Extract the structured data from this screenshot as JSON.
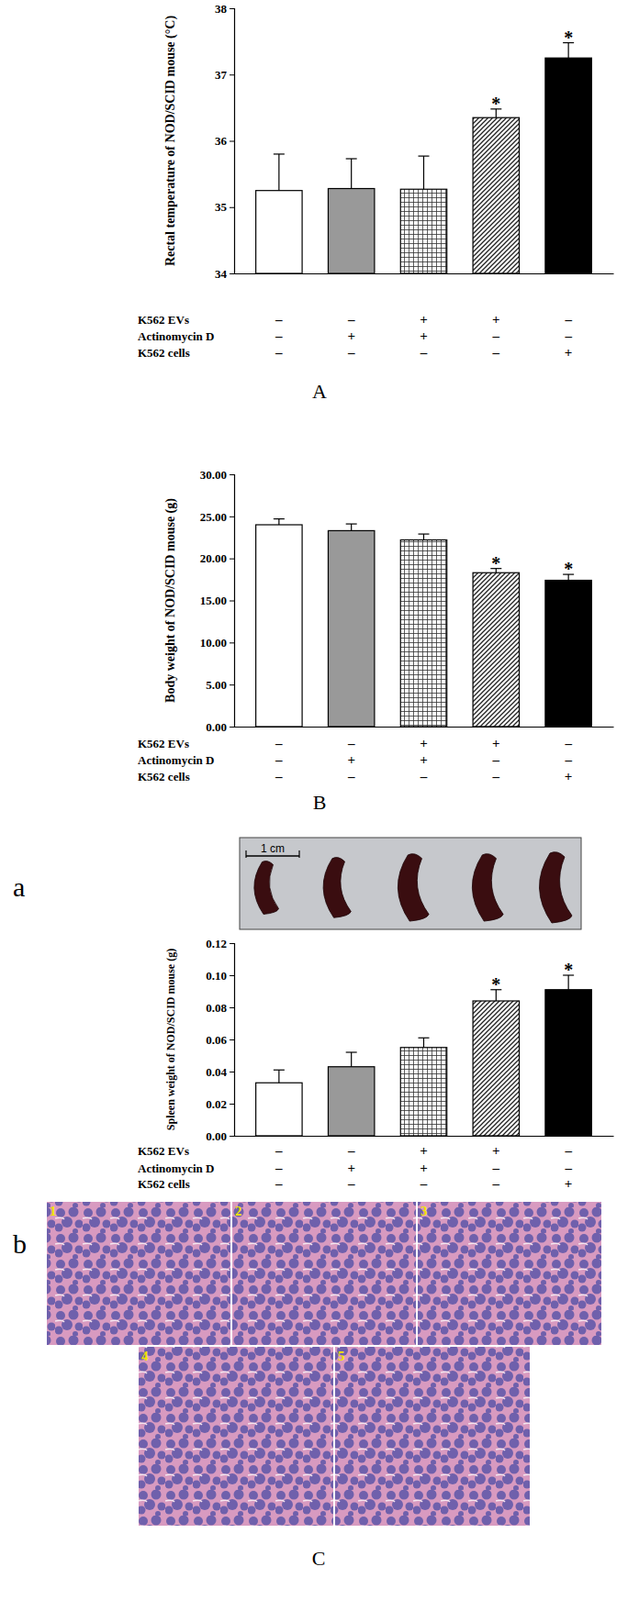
{
  "chart_data": [
    {
      "type": "bar",
      "ylabel": "Rectal temperature of NOD/SCID mouse (°C)",
      "categories": [
        null,
        null,
        null,
        null,
        null
      ],
      "values": [
        35.25,
        35.28,
        35.27,
        36.35,
        37.25
      ],
      "errors": [
        0.55,
        0.45,
        0.5,
        0.13,
        0.23
      ],
      "colors": [
        "#ffffff",
        "#999999",
        "#ffffff",
        "#ffffff",
        "#000000"
      ],
      "ylim": [
        34,
        38
      ],
      "yticks": [
        34,
        35,
        36,
        37,
        38
      ],
      "annotations": [
        {
          "index": 3,
          "text": "*"
        },
        {
          "index": 4,
          "text": "*"
        }
      ],
      "treatments": [
        {
          "name": "K562 EVs",
          "values": [
            "–",
            "–",
            "+",
            "+",
            "–"
          ]
        },
        {
          "name": "Actinomycin D",
          "values": [
            "–",
            "+",
            "+",
            "–",
            "–"
          ]
        },
        {
          "name": "K562 cells",
          "values": [
            "–",
            "–",
            "–",
            "–",
            "+"
          ]
        }
      ]
    },
    {
      "type": "bar",
      "ylabel": "Body weight of NOD/SCID mouse (g)",
      "categories": [
        null,
        null,
        null,
        null,
        null
      ],
      "values": [
        24.0,
        23.3,
        22.2,
        18.3,
        17.4
      ],
      "errors": [
        0.7,
        0.8,
        0.7,
        0.5,
        0.7
      ],
      "colors": [
        "#ffffff",
        "#999999",
        "#ffffff",
        "#ffffff",
        "#000000"
      ],
      "ylim": [
        0,
        30
      ],
      "yticks": [
        {
          "value": 0,
          "label": "0.00"
        },
        {
          "value": 5,
          "label": "5.00"
        },
        {
          "value": 10,
          "label": "10.00"
        },
        {
          "value": 15,
          "label": "15.00"
        },
        {
          "value": 20,
          "label": "20.00"
        },
        {
          "value": 25,
          "label": "25.00"
        },
        {
          "value": 30,
          "label": "30.00"
        }
      ],
      "annotations": [
        {
          "index": 3,
          "text": "*"
        },
        {
          "index": 4,
          "text": "*"
        }
      ],
      "treatments": [
        {
          "name": "K562 EVs",
          "values": [
            "–",
            "–",
            "+",
            "+",
            "–"
          ]
        },
        {
          "name": "Actinomycin D",
          "values": [
            "–",
            "+",
            "+",
            "–",
            "–"
          ]
        },
        {
          "name": "K562 cells",
          "values": [
            "–",
            "–",
            "–",
            "–",
            "+"
          ]
        }
      ]
    },
    {
      "type": "bar",
      "ylabel": "Spleen weight of NOD/SCID mouse (g)",
      "categories": [
        null,
        null,
        null,
        null,
        null
      ],
      "values": [
        0.033,
        0.043,
        0.055,
        0.084,
        0.091
      ],
      "errors": [
        0.008,
        0.009,
        0.006,
        0.007,
        0.009
      ],
      "colors": [
        "#ffffff",
        "#999999",
        "#ffffff",
        "#ffffff",
        "#000000"
      ],
      "ylim": [
        0,
        0.12
      ],
      "yticks": [
        {
          "value": 0,
          "label": "0.00"
        },
        {
          "value": 0.02,
          "label": "0.02"
        },
        {
          "value": 0.04,
          "label": "0.04"
        },
        {
          "value": 0.06,
          "label": "0.06"
        },
        {
          "value": 0.08,
          "label": "0.08"
        },
        {
          "value": 0.1,
          "label": "0.10"
        },
        {
          "value": 0.12,
          "label": "0.12"
        }
      ],
      "annotations": [
        {
          "index": 3,
          "text": "*"
        },
        {
          "index": 4,
          "text": "*"
        }
      ],
      "treatments": [
        {
          "name": "K562 EVs",
          "values": [
            "–",
            "–",
            "+",
            "+",
            "–"
          ]
        },
        {
          "name": "Actinomycin D",
          "values": [
            "–",
            "+",
            "+",
            "–",
            "–"
          ]
        },
        {
          "name": "K562 cells",
          "values": [
            "–",
            "–",
            "–",
            "–",
            "+"
          ]
        }
      ]
    }
  ],
  "figure": {
    "panel_labels": [
      "A",
      "B",
      "a",
      "b",
      "C"
    ],
    "scale_bar": "1 cm",
    "histology_labels": [
      "1",
      "2",
      "3",
      "4",
      "5"
    ]
  }
}
